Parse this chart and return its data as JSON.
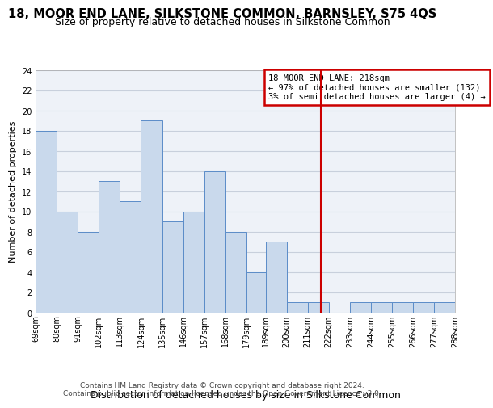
{
  "title": "18, MOOR END LANE, SILKSTONE COMMON, BARNSLEY, S75 4QS",
  "subtitle": "Size of property relative to detached houses in Silkstone Common",
  "xlabel": "Distribution of detached houses by size in Silkstone Common",
  "ylabel": "Number of detached properties",
  "bin_edges": [
    69,
    80,
    91,
    102,
    113,
    124,
    135,
    146,
    157,
    168,
    179,
    189,
    200,
    211,
    222,
    233,
    244,
    255,
    266,
    277,
    288
  ],
  "bin_labels": [
    "69sqm",
    "80sqm",
    "91sqm",
    "102sqm",
    "113sqm",
    "124sqm",
    "135sqm",
    "146sqm",
    "157sqm",
    "168sqm",
    "179sqm",
    "189sqm",
    "200sqm",
    "211sqm",
    "222sqm",
    "233sqm",
    "244sqm",
    "255sqm",
    "266sqm",
    "277sqm",
    "288sqm"
  ],
  "counts": [
    18,
    10,
    8,
    13,
    11,
    19,
    9,
    10,
    14,
    8,
    4,
    7,
    1,
    1,
    0,
    1,
    1,
    1,
    1,
    1
  ],
  "bar_color": "#c9d9ec",
  "bar_edge_color": "#5b8cc8",
  "grid_color": "#c8d0dc",
  "background_color": "#eef2f8",
  "vline_x": 218,
  "vline_color": "#cc0000",
  "annotation_title": "18 MOOR END LANE: 218sqm",
  "annotation_line1": "← 97% of detached houses are smaller (132)",
  "annotation_line2": "3% of semi-detached houses are larger (4) →",
  "annotation_box_color": "#cc0000",
  "ylim": [
    0,
    24
  ],
  "yticks": [
    0,
    2,
    4,
    6,
    8,
    10,
    12,
    14,
    16,
    18,
    20,
    22,
    24
  ],
  "footer_line1": "Contains HM Land Registry data © Crown copyright and database right 2024.",
  "footer_line2": "Contains public sector information licensed under the Open Government Licence v3.0.",
  "title_fontsize": 10.5,
  "subtitle_fontsize": 9,
  "xlabel_fontsize": 9,
  "ylabel_fontsize": 8,
  "tick_fontsize": 7,
  "footer_fontsize": 6.5,
  "annotation_fontsize": 7.5
}
